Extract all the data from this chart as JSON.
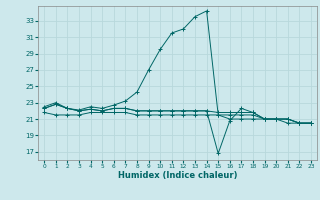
{
  "bg_color": "#cde8ec",
  "grid_color": "#b8d8dc",
  "line_color": "#006666",
  "xlabel": "Humidex (Indice chaleur)",
  "xlim": [
    -0.5,
    23.5
  ],
  "ylim": [
    16.0,
    34.8
  ],
  "xticks": [
    0,
    1,
    2,
    3,
    4,
    5,
    6,
    7,
    8,
    9,
    10,
    11,
    12,
    13,
    14,
    15,
    16,
    17,
    18,
    19,
    20,
    21,
    22,
    23
  ],
  "yticks": [
    17,
    19,
    21,
    23,
    25,
    27,
    29,
    31,
    33
  ],
  "x": [
    0,
    1,
    2,
    3,
    4,
    5,
    6,
    7,
    8,
    9,
    10,
    11,
    12,
    13,
    14,
    15,
    16,
    17,
    18,
    19,
    20,
    21,
    22,
    23
  ],
  "main_y": [
    22.5,
    23.0,
    22.3,
    22.1,
    22.5,
    22.3,
    22.7,
    23.2,
    24.3,
    27.0,
    29.5,
    31.5,
    32.0,
    33.5,
    34.2,
    21.5,
    21.0,
    21.0,
    21.0,
    21.0,
    21.0,
    20.5,
    20.5,
    20.5
  ],
  "flat_a": [
    21.8,
    21.5,
    21.5,
    21.5,
    21.8,
    21.8,
    21.8,
    21.8,
    21.5,
    21.5,
    21.5,
    21.5,
    21.5,
    21.5,
    21.5,
    21.5,
    21.5,
    21.5,
    21.5,
    21.0,
    21.0,
    21.0,
    20.5,
    20.5
  ],
  "flat_b": [
    22.3,
    22.8,
    22.3,
    22.0,
    22.2,
    22.0,
    22.3,
    22.3,
    22.0,
    22.0,
    22.0,
    22.0,
    22.0,
    22.0,
    22.0,
    21.8,
    21.8,
    21.8,
    21.8,
    21.0,
    21.0,
    21.0,
    20.5,
    20.5
  ],
  "spike_y": [
    22.3,
    22.8,
    22.3,
    22.0,
    22.2,
    22.0,
    22.3,
    22.3,
    22.0,
    22.0,
    22.0,
    22.0,
    22.0,
    22.0,
    22.0,
    16.8,
    20.8,
    22.3,
    21.8,
    21.0,
    21.0,
    21.0,
    20.5,
    20.5
  ]
}
